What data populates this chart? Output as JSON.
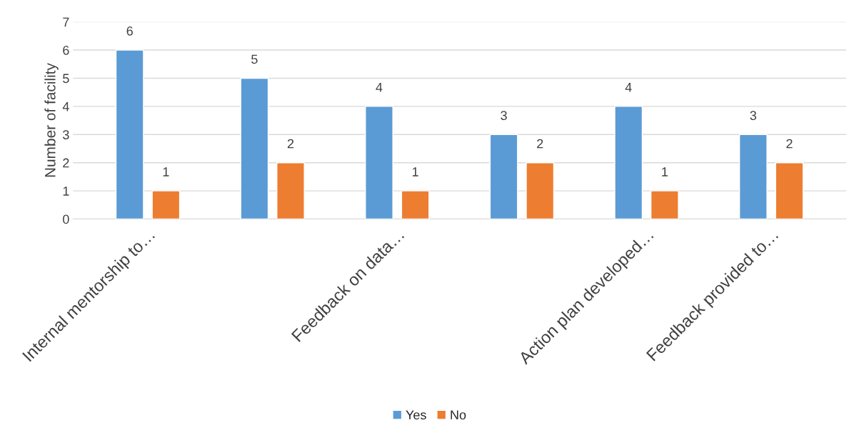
{
  "chart_data": {
    "type": "bar",
    "ylabel": "Number of facility",
    "categories": [
      "Internal mentorship to…",
      null,
      "Feedback on data…",
      null,
      "Action plan developed…",
      "Feedback provided to…"
    ],
    "series": [
      {
        "name": "Yes",
        "color": "#5b9bd5",
        "values": [
          6,
          5,
          4,
          3,
          4,
          3
        ]
      },
      {
        "name": "No",
        "color": "#ed7d31",
        "values": [
          1,
          2,
          1,
          2,
          1,
          2
        ]
      }
    ],
    "ylim": [
      0,
      7
    ],
    "yticks": [
      0,
      1,
      2,
      3,
      4,
      5,
      6,
      7
    ],
    "grid": "y",
    "legend": "bottom",
    "data_labels": true
  }
}
